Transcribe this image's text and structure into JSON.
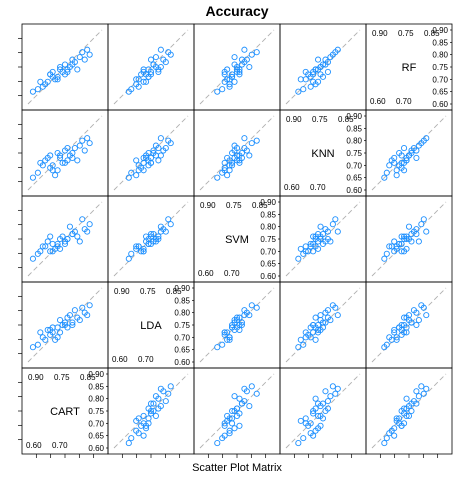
{
  "chart_data": {
    "type": "scatter",
    "title": "Accuracy",
    "xlabel": "Scatter Plot Matrix",
    "variables": [
      "CART",
      "LDA",
      "SVM",
      "KNN",
      "RF"
    ],
    "axis_range": [
      0.6,
      0.9
    ],
    "diag_ticks": [
      {
        "label": "0.90",
        "value": 0.9
      },
      {
        "label": "0.85",
        "value": 0.85
      },
      {
        "label": "0.80",
        "value": 0.8
      },
      {
        "label": "0.75",
        "value": 0.75
      },
      {
        "label": "0.70",
        "value": 0.7
      },
      {
        "label": "0.65",
        "value": 0.65
      },
      {
        "label": "0.60",
        "value": 0.6
      }
    ],
    "reference_line": "y = x (dashed grey)",
    "point_style": "open circles, blue",
    "samples": [
      {
        "CART": 0.8,
        "LDA": 0.78,
        "SVM": 0.76,
        "KNN": 0.72,
        "RF": 0.74
      },
      {
        "CART": 0.75,
        "LDA": 0.75,
        "SVM": 0.73,
        "KNN": 0.71,
        "RF": 0.72
      },
      {
        "CART": 0.7,
        "LDA": 0.72,
        "SVM": 0.7,
        "KNN": 0.68,
        "RF": 0.73
      },
      {
        "CART": 0.68,
        "LDA": 0.73,
        "SVM": 0.74,
        "KNN": 0.73,
        "RF": 0.69
      },
      {
        "CART": 0.83,
        "LDA": 0.8,
        "SVM": 0.79,
        "KNN": 0.76,
        "RF": 0.78
      },
      {
        "CART": 0.73,
        "LDA": 0.77,
        "SVM": 0.75,
        "KNN": 0.74,
        "RF": 0.75
      },
      {
        "CART": 0.66,
        "LDA": 0.7,
        "SVM": 0.72,
        "KNN": 0.7,
        "RF": 0.67
      },
      {
        "CART": 0.78,
        "LDA": 0.76,
        "SVM": 0.77,
        "KNN": 0.75,
        "RF": 0.76
      },
      {
        "CART": 0.71,
        "LDA": 0.69,
        "SVM": 0.71,
        "KNN": 0.66,
        "RF": 0.7
      },
      {
        "CART": 0.85,
        "LDA": 0.83,
        "SVM": 0.81,
        "KNN": 0.79,
        "RF": 0.8
      },
      {
        "CART": 0.64,
        "LDA": 0.67,
        "SVM": 0.69,
        "KNN": 0.67,
        "RF": 0.66
      },
      {
        "CART": 0.76,
        "LDA": 0.74,
        "SVM": 0.75,
        "KNN": 0.72,
        "RF": 0.74
      },
      {
        "CART": 0.72,
        "LDA": 0.74,
        "SVM": 0.73,
        "KNN": 0.75,
        "RF": 0.71
      },
      {
        "CART": 0.79,
        "LDA": 0.81,
        "SVM": 0.78,
        "KNN": 0.77,
        "RF": 0.77
      },
      {
        "CART": 0.69,
        "LDA": 0.71,
        "SVM": 0.7,
        "KNN": 0.69,
        "RF": 0.72
      },
      {
        "CART": 0.74,
        "LDA": 0.75,
        "SVM": 0.76,
        "KNN": 0.71,
        "RF": 0.73
      },
      {
        "CART": 0.81,
        "LDA": 0.77,
        "SVM": 0.74,
        "KNN": 0.78,
        "RF": 0.79
      },
      {
        "CART": 0.67,
        "LDA": 0.69,
        "SVM": 0.72,
        "KNN": 0.72,
        "RF": 0.68
      },
      {
        "CART": 0.77,
        "LDA": 0.79,
        "SVM": 0.8,
        "KNN": 0.74,
        "RF": 0.75
      },
      {
        "CART": 0.73,
        "LDA": 0.72,
        "SVM": 0.71,
        "KNN": 0.73,
        "RF": 0.74
      },
      {
        "CART": 0.62,
        "LDA": 0.66,
        "SVM": 0.67,
        "KNN": 0.65,
        "RF": 0.65
      },
      {
        "CART": 0.75,
        "LDA": 0.76,
        "SVM": 0.74,
        "KNN": 0.76,
        "RF": 0.76
      },
      {
        "CART": 0.82,
        "LDA": 0.82,
        "SVM": 0.83,
        "KNN": 0.8,
        "RF": 0.81
      },
      {
        "CART": 0.7,
        "LDA": 0.74,
        "SVM": 0.73,
        "KNN": 0.7,
        "RF": 0.71
      },
      {
        "CART": 0.78,
        "LDA": 0.75,
        "SVM": 0.77,
        "KNN": 0.73,
        "RF": 0.78
      },
      {
        "CART": 0.65,
        "LDA": 0.72,
        "SVM": 0.7,
        "KNN": 0.71,
        "RF": 0.69
      },
      {
        "CART": 0.84,
        "LDA": 0.79,
        "SVM": 0.78,
        "KNN": 0.81,
        "RF": 0.82
      },
      {
        "CART": 0.72,
        "LDA": 0.7,
        "SVM": 0.72,
        "KNN": 0.68,
        "RF": 0.7
      },
      {
        "CART": 0.76,
        "LDA": 0.78,
        "SVM": 0.75,
        "KNN": 0.77,
        "RF": 0.73
      },
      {
        "CART": 0.69,
        "LDA": 0.73,
        "SVM": 0.76,
        "KNN": 0.74,
        "RF": 0.72
      }
    ]
  }
}
